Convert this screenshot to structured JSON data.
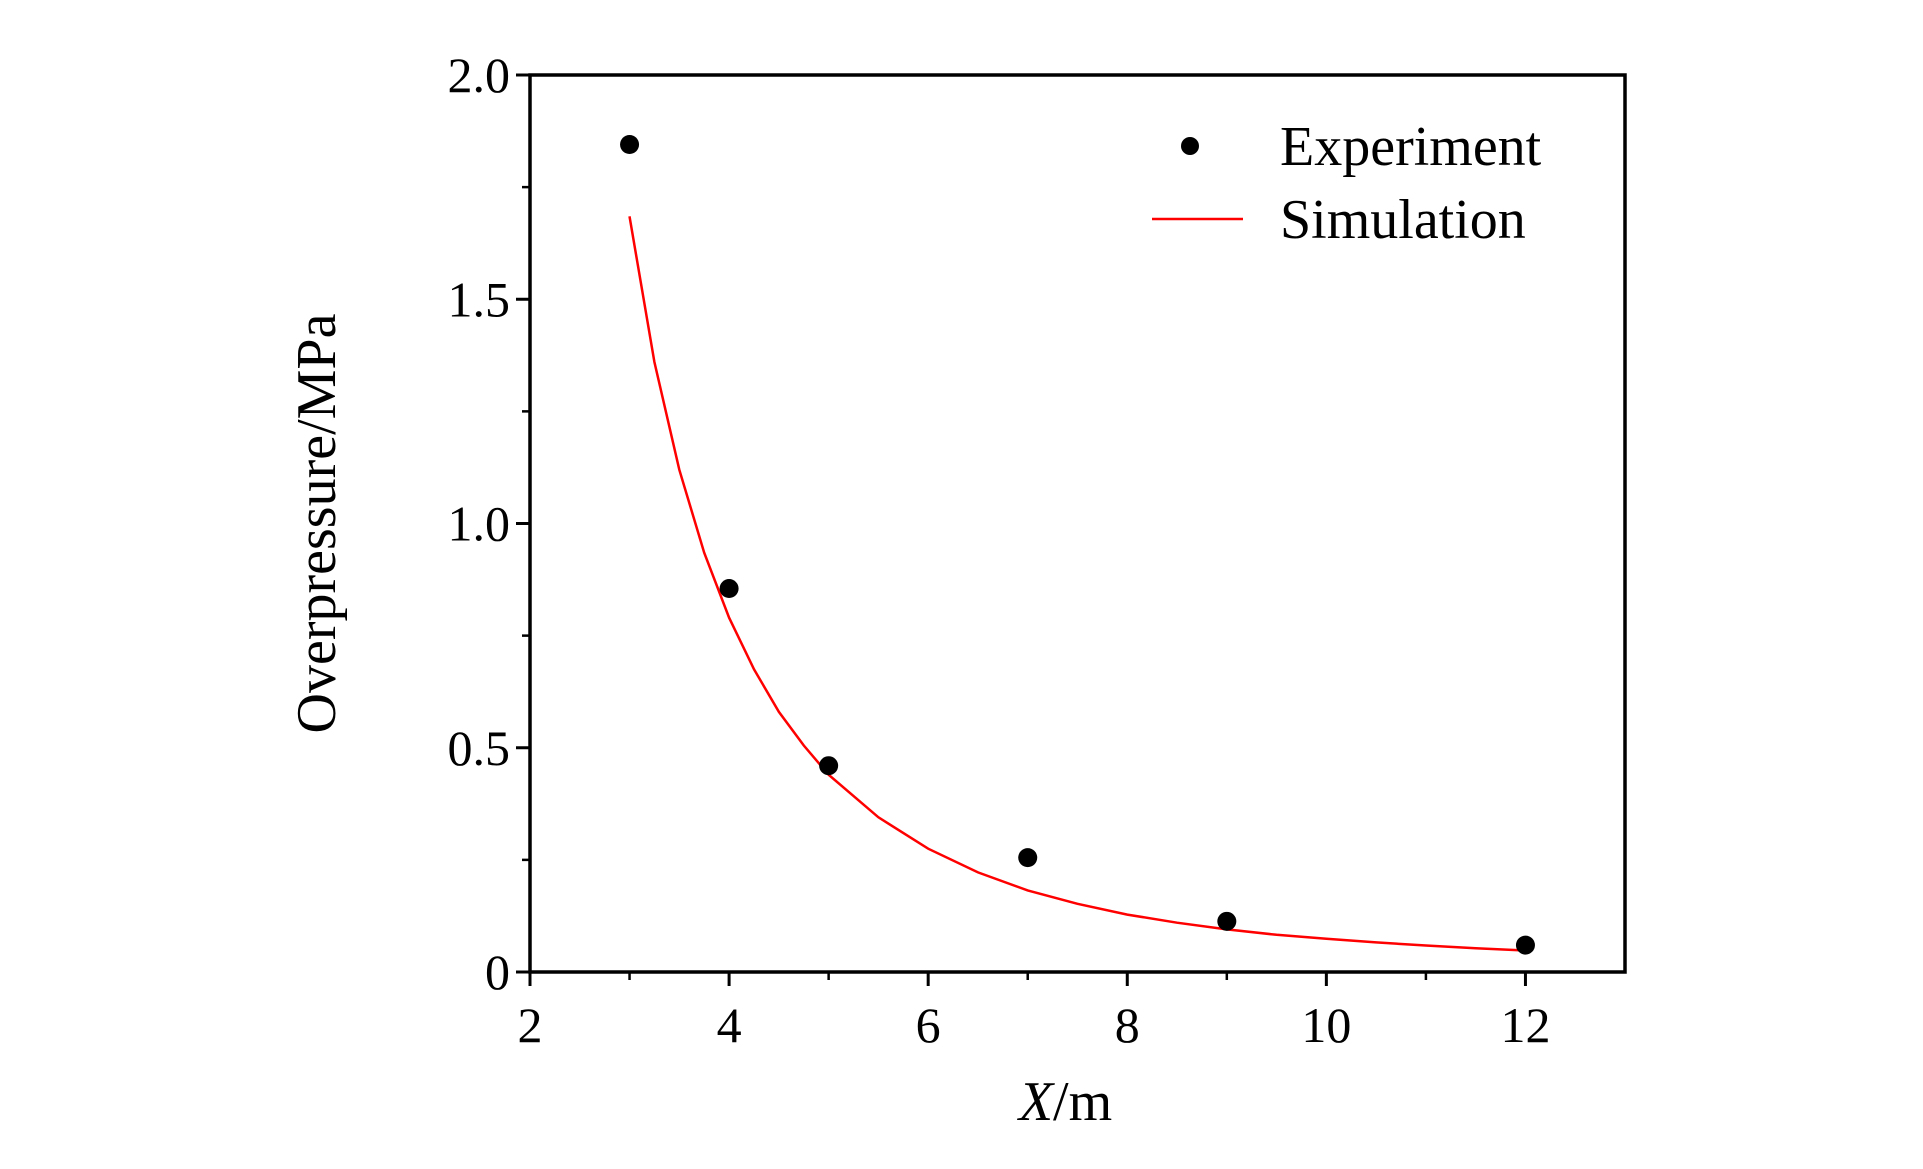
{
  "chart_data": {
    "type": "scatter",
    "title": "",
    "xlabel_italic": "X",
    "xlabel_unit": "/m",
    "ylabel": "Overpressure/MPa",
    "xlim": [
      2,
      13
    ],
    "ylim": [
      0,
      2.0
    ],
    "xticks": [
      2,
      4,
      6,
      8,
      10,
      12
    ],
    "xtick_labels": [
      "2",
      "4",
      "6",
      "8",
      "10",
      "12"
    ],
    "yticks": [
      0,
      0.5,
      1.0,
      1.5,
      2.0
    ],
    "ytick_labels": [
      "0",
      "0.5",
      "1.0",
      "1.5",
      "2.0"
    ],
    "grid": false,
    "legend_position": "top-right",
    "series": [
      {
        "name": "Experiment",
        "kind": "scatter",
        "color": "#000000",
        "x": [
          3,
          4,
          5,
          7,
          9,
          12
        ],
        "y": [
          1.845,
          0.855,
          0.46,
          0.255,
          0.113,
          0.06
        ]
      },
      {
        "name": "Simulation",
        "kind": "line",
        "color": "#ff0000",
        "x": [
          3.0,
          3.25,
          3.5,
          3.75,
          4.0,
          4.25,
          4.5,
          4.75,
          5.0,
          5.5,
          6.0,
          6.5,
          7.0,
          7.5,
          8.0,
          8.5,
          9.0,
          9.5,
          10.0,
          10.5,
          11.0,
          11.5,
          12.0
        ],
        "y": [
          1.685,
          1.36,
          1.12,
          0.935,
          0.79,
          0.675,
          0.58,
          0.505,
          0.44,
          0.345,
          0.275,
          0.222,
          0.182,
          0.152,
          0.128,
          0.11,
          0.095,
          0.083,
          0.074,
          0.066,
          0.059,
          0.053,
          0.048
        ]
      }
    ]
  }
}
